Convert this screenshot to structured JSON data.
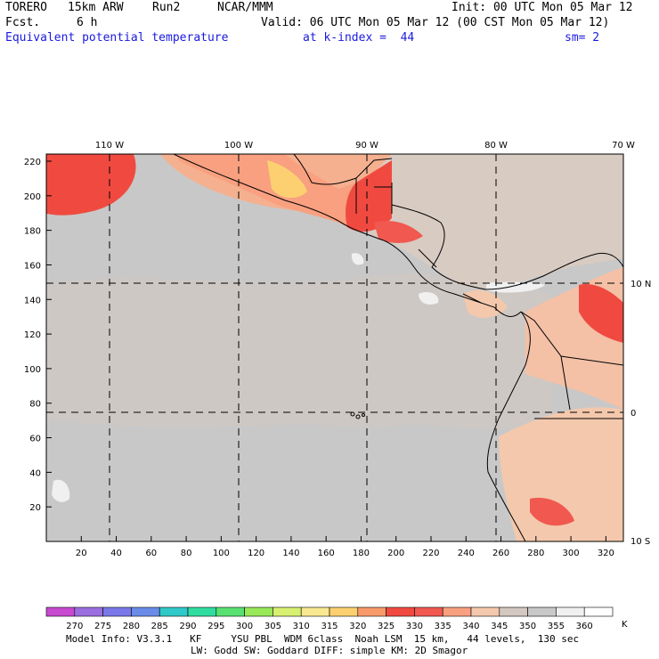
{
  "header": {
    "model": "TORERO",
    "resolution": "15km ARW",
    "run": "Run2",
    "org": "NCAR/MMM",
    "init": "Init: 00 UTC Mon 05 Mar 12",
    "fcst_label": "Fcst.",
    "fcst_value": "6 h",
    "valid": "Valid: 06 UTC Mon 05 Mar 12 (00 CST Mon 05 Mar 12)",
    "field": "Equivalent potential temperature",
    "k_index": "at k-index =  44",
    "smoothing": "sm= 2"
  },
  "map": {
    "top_lon_labels": [
      "110 W",
      "100 W",
      "90 W",
      "80 W",
      "70 W"
    ],
    "right_lat_labels": [
      "10 N",
      "0",
      "10 S"
    ],
    "y_ticks": [
      "20",
      "40",
      "60",
      "80",
      "100",
      "120",
      "140",
      "160",
      "180",
      "200",
      "220"
    ],
    "x_ticks": [
      "20",
      "40",
      "60",
      "80",
      "100",
      "120",
      "140",
      "160",
      "180",
      "200",
      "220",
      "240",
      "260",
      "280",
      "300",
      "320"
    ]
  },
  "colorbar": {
    "labels": [
      "270",
      "275",
      "280",
      "285",
      "290",
      "295",
      "300",
      "305",
      "310",
      "315",
      "320",
      "325",
      "330",
      "335",
      "340",
      "345",
      "350",
      "355",
      "360"
    ],
    "unit": "K",
    "colors": [
      "#c84ad0",
      "#9b6ee0",
      "#7a78e8",
      "#6a8ce8",
      "#30c8c8",
      "#30dca0",
      "#58e070",
      "#98e858",
      "#d8f070",
      "#f8e890",
      "#fcd070",
      "#f89a6a",
      "#f04a40",
      "#f05850",
      "#f8a080",
      "#f4c8ac",
      "#d4c8c0",
      "#c8c8c8",
      "#f0f0f0",
      "#ffffff"
    ]
  },
  "footer": {
    "line1": "Model Info: V3.3.1   KF     YSU PBL  WDM 6class  Noah LSM  15 km,   44 levels,  130 sec",
    "line2": "LW: Godd SW: Goddard DIFF: simple KM: 2D Smagor"
  }
}
